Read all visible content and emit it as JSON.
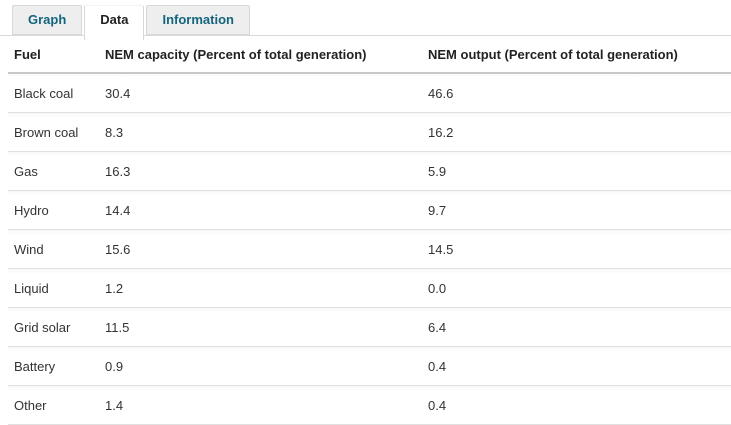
{
  "tabs": [
    {
      "label": "Graph",
      "active": false
    },
    {
      "label": "Data",
      "active": true
    },
    {
      "label": "Information",
      "active": false
    }
  ],
  "table": {
    "columns": {
      "fuel": "Fuel",
      "capacity": "NEM capacity (Percent of total generation)",
      "output": "NEM output (Percent of total generation)"
    },
    "rows": [
      {
        "fuel": "Black coal",
        "capacity": "30.4",
        "output": "46.6"
      },
      {
        "fuel": "Brown coal",
        "capacity": "8.3",
        "output": "16.2"
      },
      {
        "fuel": "Gas",
        "capacity": "16.3",
        "output": "5.9"
      },
      {
        "fuel": "Hydro",
        "capacity": "14.4",
        "output": "9.7"
      },
      {
        "fuel": "Wind",
        "capacity": "15.6",
        "output": "14.5"
      },
      {
        "fuel": "Liquid",
        "capacity": "1.2",
        "output": "0.0"
      },
      {
        "fuel": "Grid solar",
        "capacity": "11.5",
        "output": "6.4"
      },
      {
        "fuel": "Battery",
        "capacity": "0.9",
        "output": "0.4"
      },
      {
        "fuel": "Other",
        "capacity": "1.4",
        "output": "0.4"
      }
    ]
  },
  "colors": {
    "tab_text": "#14647f",
    "active_tab_text": "#222222",
    "tab_bg": "#eeeeee",
    "active_tab_bg": "#ffffff",
    "tab_border": "#d8d8d8",
    "header_rule": "#c8c8c8",
    "row_rule": "#e0e0e0"
  }
}
